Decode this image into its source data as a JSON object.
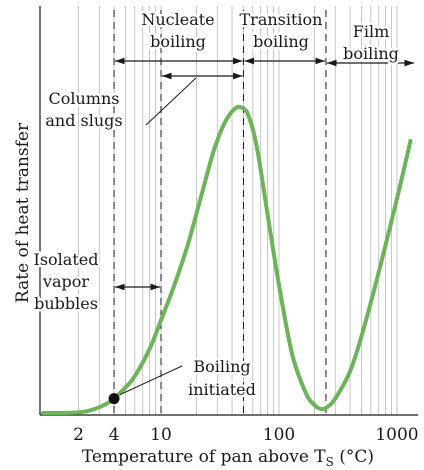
{
  "chart_data": {
    "type": "line",
    "xlabel": "Temperature of pan above T",
    "xlabel_sub": "S",
    "xlabel_unit": " (°C)",
    "ylabel": "Rate of heat transfer",
    "x_scale": "log",
    "xlim": [
      1,
      1800
    ],
    "grid": true,
    "x_ticks": [
      {
        "value": 2,
        "label": "2"
      },
      {
        "value": 4,
        "label": "4"
      },
      {
        "value": 10,
        "label": "10"
      },
      {
        "value": 100,
        "label": "100"
      },
      {
        "value": 1000,
        "label": "1000"
      }
    ],
    "gridlines_x": [
      2,
      3,
      4,
      5,
      6,
      7,
      8,
      9,
      10,
      20,
      30,
      40,
      50,
      60,
      70,
      80,
      90,
      100,
      200,
      300,
      400,
      500,
      600,
      700,
      800,
      900,
      1000
    ],
    "series": [
      {
        "color": "#6cb35a",
        "points": [
          [
            1,
            0.0
          ],
          [
            1.5,
            0.0
          ],
          [
            2,
            0.002
          ],
          [
            2.5,
            0.008
          ],
          [
            3,
            0.018
          ],
          [
            3.5,
            0.03
          ],
          [
            4,
            0.045
          ],
          [
            5,
            0.08
          ],
          [
            6,
            0.115
          ],
          [
            8,
            0.2
          ],
          [
            10,
            0.29
          ],
          [
            13,
            0.4
          ],
          [
            17,
            0.53
          ],
          [
            22,
            0.68
          ],
          [
            28,
            0.82
          ],
          [
            35,
            0.91
          ],
          [
            42,
            0.95
          ],
          [
            48,
            0.955
          ],
          [
            55,
            0.93
          ],
          [
            65,
            0.83
          ],
          [
            80,
            0.62
          ],
          [
            100,
            0.4
          ],
          [
            130,
            0.18
          ],
          [
            170,
            0.06
          ],
          [
            200,
            0.025
          ],
          [
            230,
            0.012
          ],
          [
            260,
            0.02
          ],
          [
            300,
            0.045
          ],
          [
            400,
            0.13
          ],
          [
            500,
            0.24
          ],
          [
            700,
            0.44
          ],
          [
            1000,
            0.67
          ],
          [
            1300,
            0.85
          ],
          [
            1600,
            1.0
          ],
          [
            1800,
            1.08
          ]
        ]
      }
    ],
    "markers": [
      {
        "x": 4,
        "y": 0.045,
        "label_lines": [
          "Boiling",
          "initiated"
        ]
      }
    ],
    "boundaries_x": [
      4,
      10,
      50,
      250
    ],
    "regions": [
      {
        "label_lines": [
          "Nucleate",
          "boiling"
        ],
        "from": 4,
        "to": 50
      },
      {
        "label_lines": [
          "Transition",
          "boiling"
        ],
        "from": 50,
        "to": 250
      },
      {
        "label_lines": [
          "Film",
          "boiling"
        ],
        "from": 250,
        "to": 1800
      }
    ],
    "annotations": [
      {
        "label_lines": [
          "Columns",
          "and slugs"
        ],
        "from": 10,
        "to": 50
      },
      {
        "label_lines": [
          "Isolated",
          "vapor",
          "bubbles"
        ],
        "from": 4,
        "to": 10
      }
    ]
  }
}
